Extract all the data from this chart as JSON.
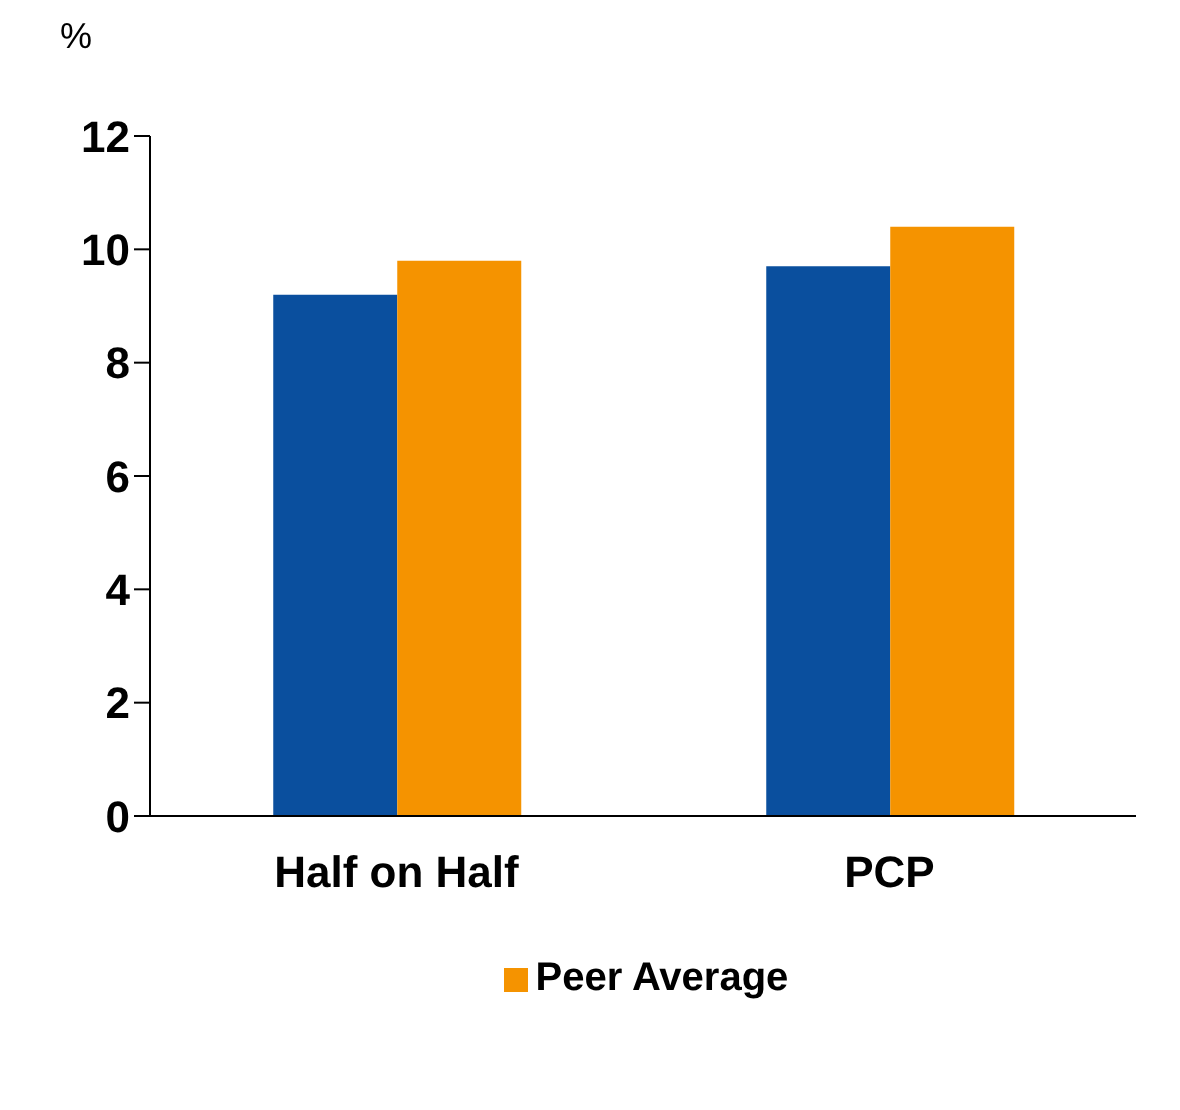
{
  "chart_data": {
    "type": "bar",
    "ylabel": "%",
    "categories": [
      "Half on Half",
      "PCP"
    ],
    "series": [
      {
        "color": "#0a4f9e",
        "values": [
          9.2,
          9.7
        ]
      },
      {
        "name": "Peer Average",
        "color": "#f59300",
        "values": [
          9.8,
          10.4
        ]
      }
    ],
    "ylim": [
      0,
      12
    ],
    "yticks": [
      0,
      2,
      4,
      6,
      8,
      10,
      12
    ],
    "grid": false,
    "legend": "bottom"
  }
}
